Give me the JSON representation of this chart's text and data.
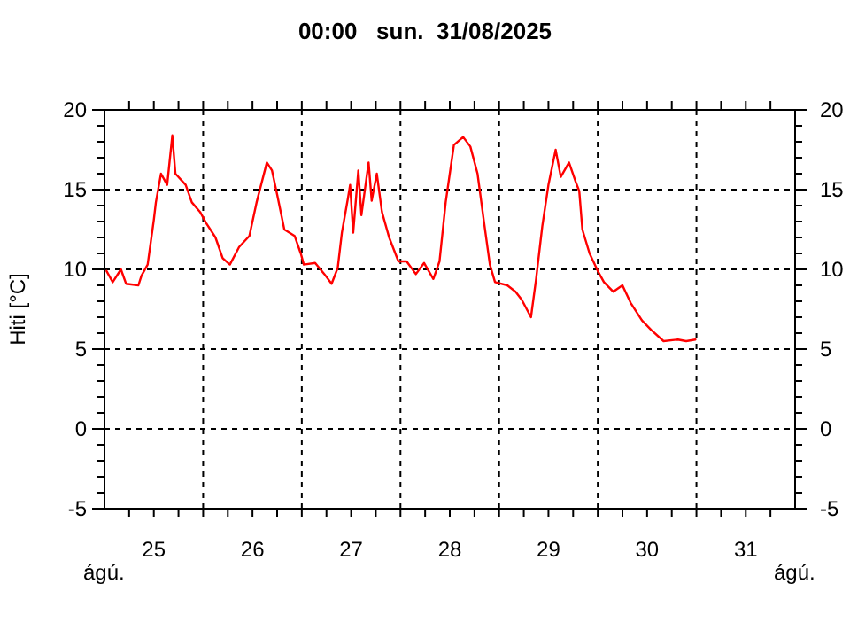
{
  "chart_data": {
    "type": "line",
    "title": "00:00   sun.  31/08/2025",
    "ylabel": "Hiti [°C]",
    "annotations": [
      "ágú.",
      "ágú."
    ],
    "x": [
      "2025-08-25T00:30",
      "2025-08-25T02:00",
      "2025-08-25T04:00",
      "2025-08-25T05:15",
      "2025-08-25T08:15",
      "2025-08-25T09:00",
      "2025-08-25T10:30",
      "2025-08-25T12:00",
      "2025-08-25T12:30",
      "2025-08-25T13:45",
      "2025-08-25T15:15",
      "2025-08-25T16:30",
      "2025-08-25T17:15",
      "2025-08-25T19:45",
      "2025-08-25T21:15",
      "2025-08-25T23:15",
      "2025-08-26T00:45",
      "2025-08-26T03:00",
      "2025-08-26T04:45",
      "2025-08-26T06:30",
      "2025-08-26T08:45",
      "2025-08-26T11:15",
      "2025-08-26T13:00",
      "2025-08-26T15:30",
      "2025-08-26T16:45",
      "2025-08-26T18:00",
      "2025-08-26T19:45",
      "2025-08-26T22:15",
      "2025-08-26T23:45",
      "2025-08-27T00:30",
      "2025-08-27T03:15",
      "2025-08-27T05:30",
      "2025-08-27T07:15",
      "2025-08-27T08:45",
      "2025-08-27T09:45",
      "2025-08-27T11:15",
      "2025-08-27T11:45",
      "2025-08-27T12:30",
      "2025-08-27T13:45",
      "2025-08-27T14:30",
      "2025-08-27T16:15",
      "2025-08-27T17:00",
      "2025-08-27T18:15",
      "2025-08-27T19:30",
      "2025-08-27T21:15",
      "2025-08-27T23:30",
      "2025-08-28T01:30",
      "2025-08-28T03:45",
      "2025-08-28T05:45",
      "2025-08-28T08:00",
      "2025-08-28T09:30",
      "2025-08-28T11:00",
      "2025-08-28T13:00",
      "2025-08-28T15:15",
      "2025-08-28T17:00",
      "2025-08-28T18:45",
      "2025-08-28T20:15",
      "2025-08-28T21:45",
      "2025-08-28T23:00",
      "2025-08-29T02:00",
      "2025-08-29T04:00",
      "2025-08-29T05:30",
      "2025-08-29T07:45",
      "2025-08-29T09:00",
      "2025-08-29T10:30",
      "2025-08-29T12:00",
      "2025-08-29T13:45",
      "2025-08-29T15:00",
      "2025-08-29T17:00",
      "2025-08-29T18:45",
      "2025-08-29T19:30",
      "2025-08-29T20:15",
      "2025-08-29T22:00",
      "2025-08-30T00:00",
      "2025-08-30T01:30",
      "2025-08-30T03:45",
      "2025-08-30T06:00",
      "2025-08-30T08:00",
      "2025-08-30T10:45",
      "2025-08-30T13:00",
      "2025-08-30T16:00",
      "2025-08-30T19:30",
      "2025-08-30T21:30",
      "2025-08-30T23:45"
    ],
    "series": [
      {
        "color": "#ff0000",
        "values": [
          9.9,
          9.2,
          10.0,
          9.1,
          9.0,
          9.6,
          10.3,
          13.1,
          14.2,
          16.0,
          15.3,
          18.4,
          16.0,
          15.3,
          14.2,
          13.6,
          12.9,
          12.0,
          10.7,
          10.3,
          11.4,
          12.1,
          14.2,
          16.7,
          16.2,
          14.7,
          12.5,
          12.1,
          11.0,
          10.3,
          10.4,
          9.7,
          9.1,
          10.1,
          12.3,
          14.5,
          15.3,
          12.3,
          16.2,
          13.4,
          16.7,
          14.3,
          16.0,
          13.6,
          12.0,
          10.5,
          10.5,
          9.7,
          10.4,
          9.4,
          10.5,
          14.2,
          17.8,
          18.3,
          17.7,
          16.0,
          13.1,
          10.3,
          9.2,
          9.0,
          8.6,
          8.1,
          7.0,
          9.4,
          12.7,
          15.3,
          17.5,
          15.8,
          16.7,
          15.4,
          14.9,
          12.5,
          11.0,
          9.9,
          9.2,
          8.6,
          9.0,
          7.9,
          6.8,
          6.2,
          5.5,
          5.6,
          5.5,
          5.6
        ]
      }
    ],
    "xlim": [
      "2025-08-25T00:00",
      "2025-09-01T00:00"
    ],
    "xticks": [
      {
        "value": "2025-08-25T06:00",
        "label": null
      },
      {
        "value": "2025-08-25T12:00",
        "label": "25"
      },
      {
        "value": "2025-08-25T18:00",
        "label": null
      },
      {
        "value": "2025-08-26T00:00",
        "label": null
      },
      {
        "value": "2025-08-26T06:00",
        "label": null
      },
      {
        "value": "2025-08-26T12:00",
        "label": "26"
      },
      {
        "value": "2025-08-26T18:00",
        "label": null
      },
      {
        "value": "2025-08-27T00:00",
        "label": null
      },
      {
        "value": "2025-08-27T06:00",
        "label": null
      },
      {
        "value": "2025-08-27T12:00",
        "label": "27"
      },
      {
        "value": "2025-08-27T18:00",
        "label": null
      },
      {
        "value": "2025-08-28T00:00",
        "label": null
      },
      {
        "value": "2025-08-28T06:00",
        "label": null
      },
      {
        "value": "2025-08-28T12:00",
        "label": "28"
      },
      {
        "value": "2025-08-28T18:00",
        "label": null
      },
      {
        "value": "2025-08-29T00:00",
        "label": null
      },
      {
        "value": "2025-08-29T06:00",
        "label": null
      },
      {
        "value": "2025-08-29T12:00",
        "label": "29"
      },
      {
        "value": "2025-08-29T18:00",
        "label": null
      },
      {
        "value": "2025-08-30T00:00",
        "label": null
      },
      {
        "value": "2025-08-30T06:00",
        "label": null
      },
      {
        "value": "2025-08-30T12:00",
        "label": "30"
      },
      {
        "value": "2025-08-30T18:00",
        "label": null
      },
      {
        "value": "2025-08-31T00:00",
        "label": null
      },
      {
        "value": "2025-08-31T06:00",
        "label": null
      },
      {
        "value": "2025-08-31T12:00",
        "label": "31"
      },
      {
        "value": "2025-08-31T18:00",
        "label": null
      }
    ],
    "ylim": [
      -5,
      20
    ],
    "yticks": [
      -5,
      {
        "value": -4,
        "label": null
      },
      {
        "value": -3,
        "label": null
      },
      {
        "value": -2,
        "label": null
      },
      {
        "value": -1,
        "label": null
      },
      0,
      {
        "value": 1,
        "label": null
      },
      {
        "value": 2,
        "label": null
      },
      {
        "value": 3,
        "label": null
      },
      {
        "value": 4,
        "label": null
      },
      5,
      {
        "value": 6,
        "label": null
      },
      {
        "value": 7,
        "label": null
      },
      {
        "value": 8,
        "label": null
      },
      {
        "value": 9,
        "label": null
      },
      10,
      {
        "value": 11,
        "label": null
      },
      {
        "value": 12,
        "label": null
      },
      {
        "value": 13,
        "label": null
      },
      {
        "value": 14,
        "label": null
      },
      15,
      {
        "value": 16,
        "label": null
      },
      {
        "value": 17,
        "label": null
      },
      {
        "value": 18,
        "label": null
      },
      {
        "value": 19,
        "label": null
      },
      20
    ],
    "y2lim": [
      -5,
      20
    ],
    "y2ticks": [
      -5,
      {
        "value": -4,
        "label": null
      },
      {
        "value": -3,
        "label": null
      },
      {
        "value": -2,
        "label": null
      },
      {
        "value": -1,
        "label": null
      },
      0,
      {
        "value": 1,
        "label": null
      },
      {
        "value": 2,
        "label": null
      },
      {
        "value": 3,
        "label": null
      },
      {
        "value": 4,
        "label": null
      },
      5,
      {
        "value": 6,
        "label": null
      },
      {
        "value": 7,
        "label": null
      },
      {
        "value": 8,
        "label": null
      },
      {
        "value": 9,
        "label": null
      },
      10,
      {
        "value": 11,
        "label": null
      },
      {
        "value": 12,
        "label": null
      },
      {
        "value": 13,
        "label": null
      },
      {
        "value": 14,
        "label": null
      },
      15,
      {
        "value": 16,
        "label": null
      },
      {
        "value": 17,
        "label": null
      },
      {
        "value": 18,
        "label": null
      },
      {
        "value": 19,
        "label": null
      },
      20
    ],
    "grid": true,
    "line_style": "solid",
    "marker": "none"
  }
}
